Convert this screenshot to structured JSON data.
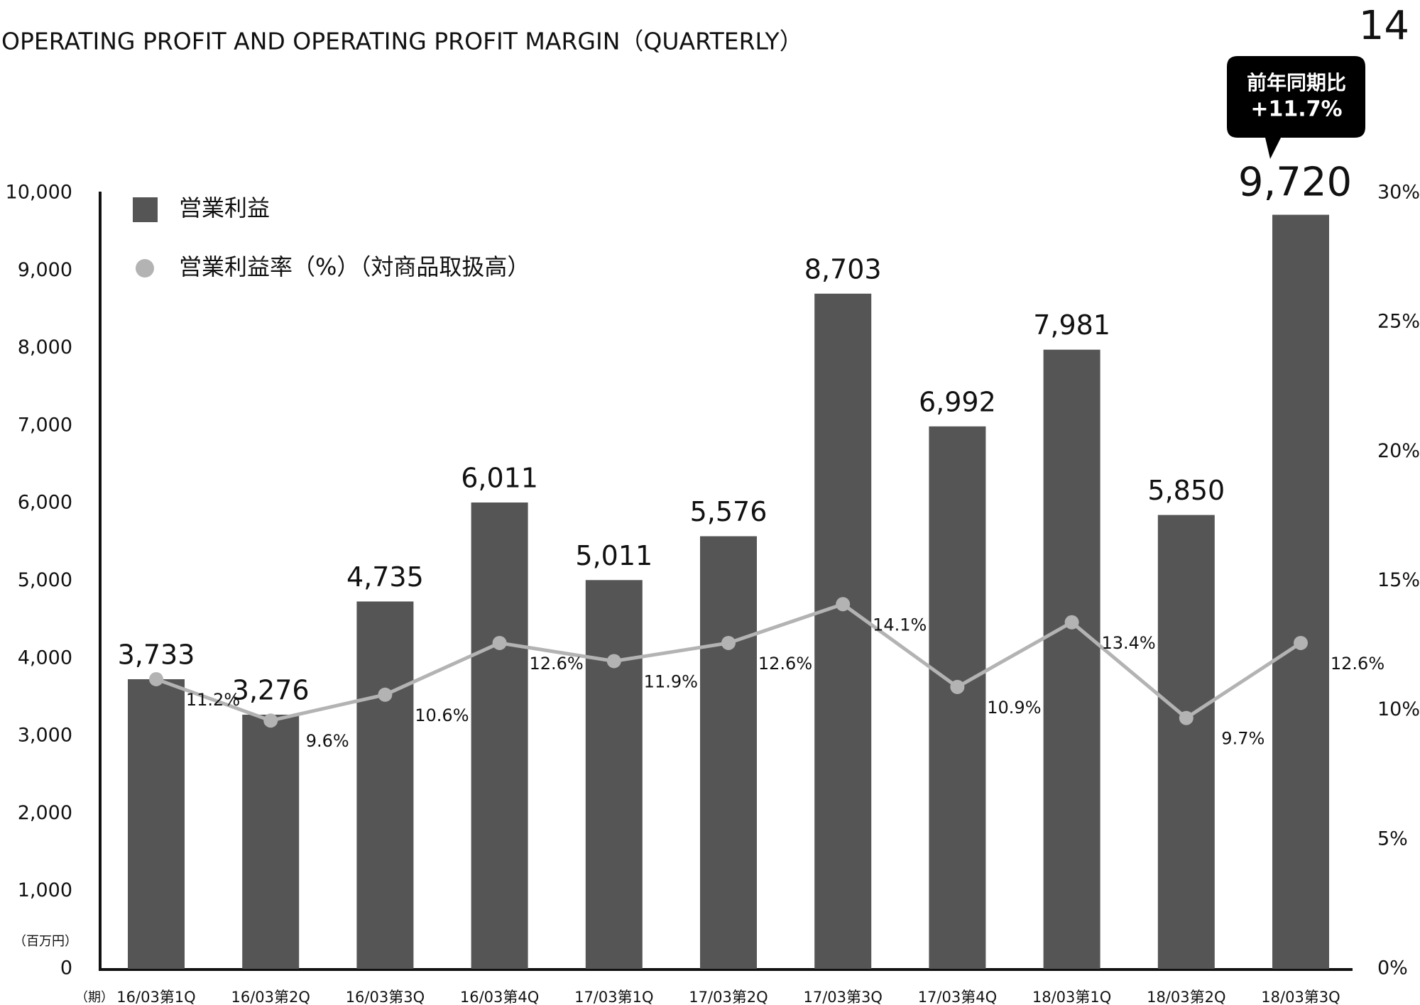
{
  "subtitle": "OPERATING PROFIT AND OPERATING PROFIT MARGIN（QUARTERLY）",
  "page_number": "14",
  "callout": {
    "line1": "前年同期比",
    "line2": "+11.7%"
  },
  "chart_data": {
    "type": "bar",
    "y_unit": "（百万円）",
    "x_unit": "（期）",
    "categories": [
      "16/03第1Q",
      "16/03第2Q",
      "16/03第3Q",
      "16/03第4Q",
      "17/03第1Q",
      "17/03第2Q",
      "17/03第3Q",
      "17/03第4Q",
      "18/03第1Q",
      "18/03第2Q",
      "18/03第3Q"
    ],
    "series": [
      {
        "name": "営業利益",
        "type": "bar",
        "color": "#555555",
        "values": [
          3733,
          3276,
          4735,
          6011,
          5011,
          5576,
          8703,
          6992,
          7981,
          5850,
          9720
        ],
        "value_labels": [
          "3,733",
          "3,276",
          "4,735",
          "6,011",
          "5,011",
          "5,576",
          "8,703",
          "6,992",
          "7,981",
          "5,850",
          "9,720"
        ]
      },
      {
        "name": "営業利益率（%）（対商品取扱高）",
        "type": "line",
        "axis": "y2",
        "color": "#b3b3b3",
        "values": [
          11.2,
          9.6,
          10.6,
          12.6,
          11.9,
          12.6,
          14.1,
          10.9,
          13.4,
          9.7,
          12.6
        ],
        "value_labels": [
          "11.2%",
          "9.6%",
          "10.6%",
          "12.6%",
          "11.9%",
          "12.6%",
          "14.1%",
          "10.9%",
          "13.4%",
          "9.7%",
          "12.6%"
        ]
      }
    ],
    "ylim": [
      0,
      10000
    ],
    "yticks": [
      0,
      {
        "value": 1000,
        "label": "1,000"
      },
      {
        "value": 2000,
        "label": "2,000"
      },
      {
        "value": 3000,
        "label": "3,000"
      },
      {
        "value": 4000,
        "label": "4,000"
      },
      {
        "value": 5000,
        "label": "5,000"
      },
      {
        "value": 6000,
        "label": "6,000"
      },
      {
        "value": 7000,
        "label": "7,000"
      },
      {
        "value": 8000,
        "label": "8,000"
      },
      {
        "value": 9000,
        "label": "9,000"
      },
      {
        "value": 10000,
        "label": "10,000"
      }
    ],
    "y2lim": [
      0,
      30
    ],
    "y2ticks": [
      {
        "value": 0,
        "label": "0%"
      },
      {
        "value": 5,
        "label": "5%"
      },
      {
        "value": 10,
        "label": "10%"
      },
      {
        "value": 15,
        "label": "15%"
      },
      {
        "value": 20,
        "label": "20%"
      },
      {
        "value": 25,
        "label": "25%"
      },
      {
        "value": 30,
        "label": "30%"
      }
    ],
    "grid": false
  }
}
